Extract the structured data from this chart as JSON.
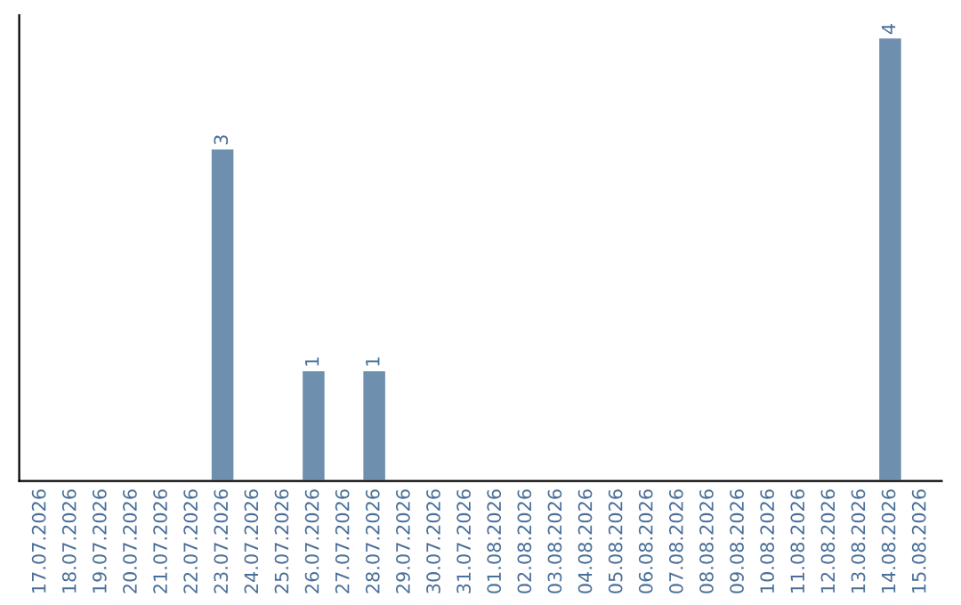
{
  "chart_data": {
    "type": "bar",
    "categories": [
      "17.07.2026",
      "18.07.2026",
      "19.07.2026",
      "20.07.2026",
      "21.07.2026",
      "22.07.2026",
      "23.07.2026",
      "24.07.2026",
      "25.07.2026",
      "26.07.2026",
      "27.07.2026",
      "28.07.2026",
      "29.07.2026",
      "30.07.2026",
      "31.07.2026",
      "01.08.2026",
      "02.08.2026",
      "03.08.2026",
      "04.08.2026",
      "05.08.2026",
      "06.08.2026",
      "07.08.2026",
      "08.08.2026",
      "09.08.2026",
      "10.08.2026",
      "11.08.2026",
      "12.08.2026",
      "13.08.2026",
      "14.08.2026",
      "15.08.2026"
    ],
    "values": [
      null,
      null,
      null,
      null,
      null,
      null,
      3,
      null,
      null,
      1,
      null,
      1,
      null,
      null,
      null,
      null,
      null,
      null,
      null,
      null,
      null,
      null,
      null,
      null,
      null,
      null,
      null,
      null,
      4,
      null
    ],
    "color": "#6f8fae",
    "data_labels": true,
    "tick_labels": "x",
    "grid": false,
    "legend": false
  }
}
